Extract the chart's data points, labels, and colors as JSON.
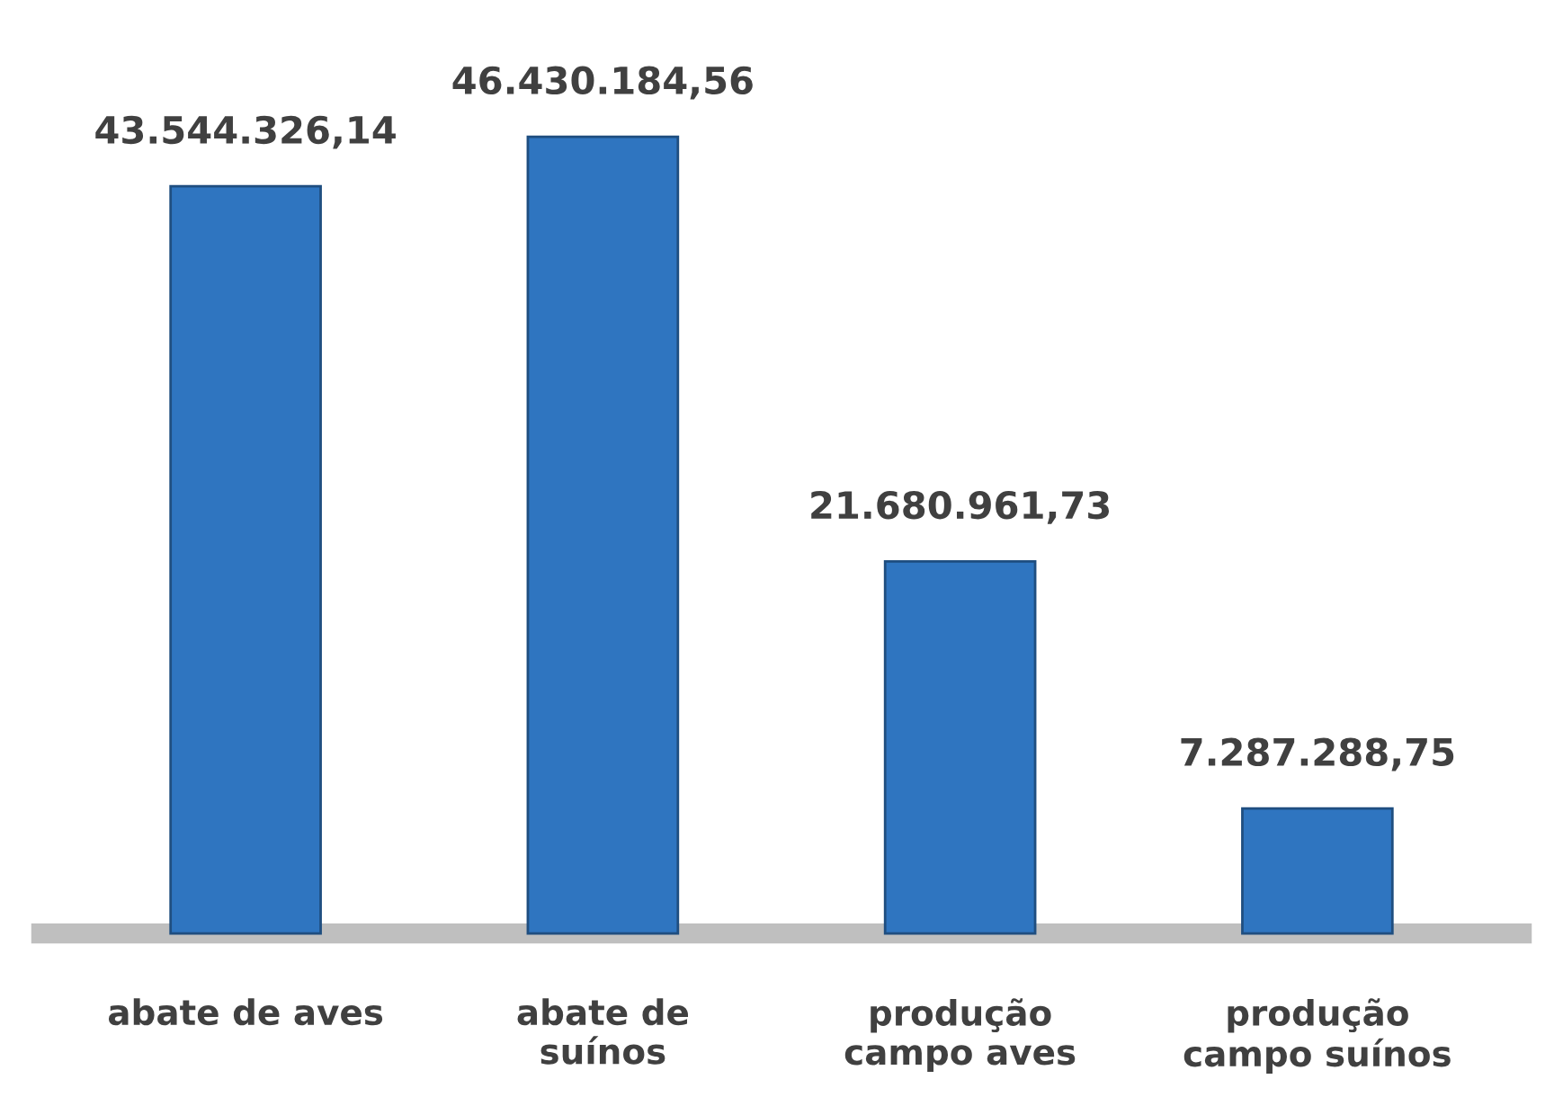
{
  "chart_data": {
    "type": "bar",
    "categories": [
      "abate de aves",
      "abate de\nsuínos",
      "produção\ncampo aves",
      "produção\ncampo suínos"
    ],
    "values": [
      43544326.14,
      46430184.56,
      21680961.73,
      7287288.75
    ],
    "value_labels": [
      "43.544.326,14",
      "46.430.184,56",
      "21.680.961,73",
      "7.287.288,75"
    ],
    "color": "#2f75c0"
  }
}
